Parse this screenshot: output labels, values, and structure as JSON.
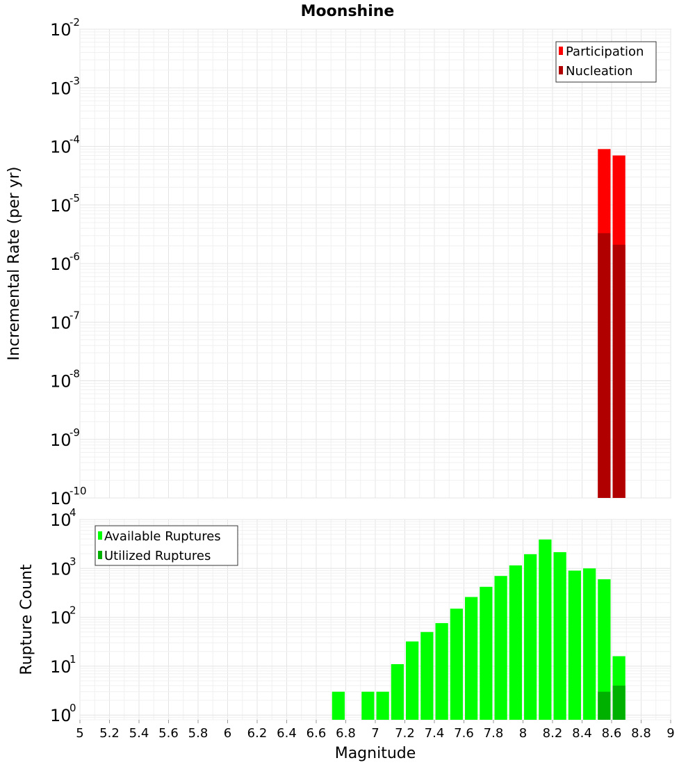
{
  "chart_data": [
    {
      "type": "bar",
      "title": "Moonshine",
      "xlabel": "",
      "ylabel": "Incremental Rate (per yr)",
      "y_scale": "log",
      "ylim": [
        1e-10,
        0.01
      ],
      "xlim": [
        5,
        9
      ],
      "bin_width": 0.1,
      "y_tick_exponents": [
        "-10",
        "-9",
        "-8",
        "-7",
        "-6",
        "-5",
        "-4",
        "-3",
        "-2"
      ],
      "legend_position": "top-right",
      "series": [
        {
          "name": "Participation",
          "color": "#ff0000",
          "x": [
            8.55,
            8.65
          ],
          "values": [
            9e-05,
            7e-05
          ]
        },
        {
          "name": "Nucleation",
          "color": "#b00000",
          "x": [
            8.55,
            8.65
          ],
          "values": [
            3.3e-06,
            2.1e-06
          ]
        }
      ]
    },
    {
      "type": "bar",
      "title": "",
      "xlabel": "Magnitude",
      "ylabel": "Rupture Count",
      "y_scale": "log",
      "ylim": [
        0.8,
        10000
      ],
      "xlim": [
        5,
        9
      ],
      "bin_width": 0.1,
      "x_tick_labels": [
        "5",
        "5.2",
        "5.4",
        "5.6",
        "5.8",
        "6",
        "6.2",
        "6.4",
        "6.6",
        "6.8",
        "7",
        "7.2",
        "7.4",
        "7.6",
        "7.8",
        "8",
        "8.2",
        "8.4",
        "8.6",
        "8.8",
        "9"
      ],
      "y_tick_exponents": [
        "0",
        "1",
        "2",
        "3",
        "4"
      ],
      "legend_position": "top-left",
      "series": [
        {
          "name": "Available Ruptures",
          "color": "#00ff00",
          "x": [
            6.75,
            6.95,
            7.05,
            7.15,
            7.25,
            7.35,
            7.45,
            7.55,
            7.65,
            7.75,
            7.85,
            7.95,
            8.05,
            8.15,
            8.25,
            8.35,
            8.45,
            8.55,
            8.65
          ],
          "values": [
            3,
            3,
            3,
            11,
            32,
            50,
            76,
            150,
            260,
            420,
            700,
            1150,
            1950,
            3900,
            2150,
            900,
            1000,
            600,
            16
          ]
        },
        {
          "name": "Utilized Ruptures",
          "color": "#00b000",
          "x": [
            8.55,
            8.65
          ],
          "values": [
            3,
            4
          ]
        }
      ]
    }
  ]
}
